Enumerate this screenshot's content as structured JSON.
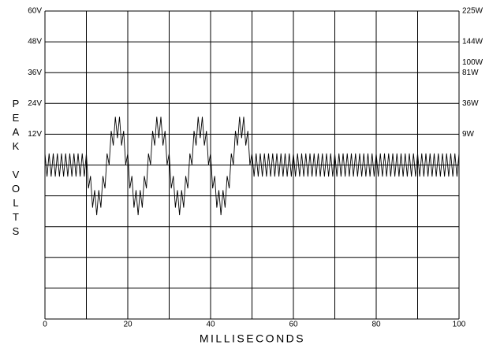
{
  "chart_data": {
    "type": "line",
    "xlabel": "MILLISECONDS",
    "ylabel": "PEAK VOLTS",
    "xlim": [
      0,
      100
    ],
    "xticks": [
      0,
      20,
      40,
      60,
      80,
      100
    ],
    "xgrid": [
      10,
      30,
      50,
      70,
      90
    ],
    "ylim": [
      -60,
      60
    ],
    "yticks": [
      {
        "value": 60,
        "label": "60V"
      },
      {
        "value": 48,
        "label": "48V"
      },
      {
        "value": 36,
        "label": "36V"
      },
      {
        "value": 24,
        "label": "24V"
      },
      {
        "value": 12,
        "label": "12V"
      }
    ],
    "ygrid": [
      0,
      -12,
      -24,
      -36,
      -48
    ],
    "y2scale": "sqrt",
    "y2lim": [
      0,
      225
    ],
    "y2ticks": [
      {
        "value": 225,
        "label": "225W"
      },
      {
        "value": 144,
        "label": "144W"
      },
      {
        "value": 100,
        "label": "100W"
      },
      {
        "value": 81,
        "label": "81W"
      },
      {
        "value": 36,
        "label": "36W"
      },
      {
        "value": 9,
        "label": "9W"
      }
    ],
    "grid": true,
    "color": "#000000",
    "x": [
      0,
      0.5,
      1,
      1.5,
      2,
      2.5,
      3,
      3.5,
      4,
      4.5,
      5,
      5.5,
      6,
      6.5,
      7,
      7.5,
      8,
      8.5,
      9,
      9.5,
      10,
      10.5,
      11,
      11.5,
      12,
      12.5,
      13,
      13.5,
      14,
      14.5,
      15,
      15.5,
      16,
      16.5,
      17,
      17.5,
      18,
      18.5,
      19,
      19.5,
      20,
      20.5,
      21,
      21.5,
      22,
      22.5,
      23,
      23.5,
      24,
      24.5,
      25,
      25.5,
      26,
      26.5,
      27,
      27.5,
      28,
      28.5,
      29,
      29.5,
      30,
      30.5,
      31,
      31.5,
      32,
      32.5,
      33,
      33.5,
      34,
      34.5,
      35,
      35.5,
      36,
      36.5,
      37,
      37.5,
      38,
      38.5,
      39,
      39.5,
      40,
      40.5,
      41,
      41.5,
      42,
      42.5,
      43,
      43.5,
      44,
      44.5,
      45,
      45.5,
      46,
      46.5,
      47,
      47.5,
      48,
      48.5,
      49,
      49.5,
      50,
      50.5,
      51,
      51.5,
      52,
      52.5,
      53,
      53.5,
      54,
      54.5,
      55,
      55.5,
      56,
      56.5,
      57,
      57.5,
      58,
      58.5,
      59,
      59.5,
      60,
      60.5,
      61,
      61.5,
      62,
      62.5,
      63,
      63.5,
      64,
      64.5,
      65,
      65.5,
      66,
      66.5,
      67,
      67.5,
      68,
      68.5,
      69,
      69.5,
      70,
      70.5,
      71,
      71.5,
      72,
      72.5,
      73,
      73.5,
      74,
      74.5,
      75,
      75.5,
      76,
      76.5,
      77,
      77.5,
      78,
      78.5,
      79,
      79.5,
      80,
      80.5,
      81,
      81.5,
      82,
      82.5,
      83,
      83.5,
      84,
      84.5,
      85,
      85.5,
      86,
      86.5,
      87,
      87.5,
      88,
      88.5,
      89,
      89.5,
      90,
      90.5,
      91,
      91.5,
      92,
      92.5,
      93,
      93.5,
      94,
      94.5,
      95,
      95.5,
      96,
      96.5,
      97,
      97.5,
      98,
      98.5,
      99,
      99.5,
      100
    ],
    "values": [
      4.5,
      -4.5,
      4.5,
      -4.5,
      4.5,
      -4.5,
      4.5,
      -4.5,
      4.5,
      -4.5,
      4.5,
      -4.5,
      4.5,
      -4.5,
      4.5,
      -4.5,
      4.5,
      -4.5,
      4.5,
      -4.5,
      4.5,
      -9.1,
      -4.3,
      -16.6,
      -9.8,
      -19.5,
      -9.8,
      -16.6,
      -4.3,
      -9.1,
      4.5,
      0.1,
      13.3,
      7.6,
      18.8,
      10.5,
      18.8,
      7.6,
      13.3,
      0.1,
      4.5,
      -9.1,
      -4.3,
      -16.6,
      -9.8,
      -19.5,
      -9.8,
      -16.6,
      -4.3,
      -9.1,
      4.5,
      0.1,
      13.3,
      7.6,
      18.8,
      10.5,
      18.8,
      7.6,
      13.3,
      0.1,
      4.5,
      -9.1,
      -4.3,
      -16.6,
      -9.8,
      -19.5,
      -9.8,
      -16.6,
      -4.3,
      -9.1,
      4.5,
      0.1,
      13.3,
      7.6,
      18.8,
      10.5,
      18.8,
      7.6,
      13.3,
      0.1,
      4.5,
      -9.1,
      -4.3,
      -16.6,
      -9.8,
      -19.5,
      -9.8,
      -16.6,
      -4.3,
      -9.1,
      4.5,
      0.1,
      13.3,
      7.6,
      18.8,
      10.5,
      18.8,
      7.6,
      13.3,
      0.1,
      4.5,
      -4.5,
      4.5,
      -4.5,
      4.5,
      -4.5,
      4.5,
      -4.5,
      4.5,
      -4.5,
      4.5,
      -4.5,
      4.5,
      -4.5,
      4.5,
      -4.5,
      4.5,
      -4.5,
      4.5,
      -4.5,
      4.5,
      -4.5,
      4.5,
      -4.5,
      4.5,
      -4.5,
      4.5,
      -4.5,
      4.5,
      -4.5,
      4.5,
      -4.5,
      4.5,
      -4.5,
      4.5,
      -4.5,
      4.5,
      -4.5,
      4.5,
      -4.5,
      4.5,
      -4.5,
      4.5,
      -4.5,
      4.5,
      -4.5,
      4.5,
      -4.5,
      4.5,
      -4.5,
      4.5,
      -4.5,
      4.5,
      -4.5,
      4.5,
      -4.5,
      4.5,
      -4.5,
      4.5,
      -4.5,
      4.5,
      -4.5,
      4.5,
      -4.5,
      4.5,
      -4.5,
      4.5,
      -4.5,
      4.5,
      -4.5,
      4.5,
      -4.5,
      4.5,
      -4.5,
      4.5,
      -4.5,
      4.5,
      -4.5,
      4.5,
      -4.5,
      4.5,
      -4.5,
      4.5,
      -4.5,
      4.5,
      -4.5,
      4.5,
      -4.5,
      4.5,
      -4.5,
      4.5,
      -4.5,
      4.5,
      -4.5,
      4.5,
      -4.5,
      4.5,
      -4.5,
      4.5,
      -4.5,
      4.5
    ]
  }
}
